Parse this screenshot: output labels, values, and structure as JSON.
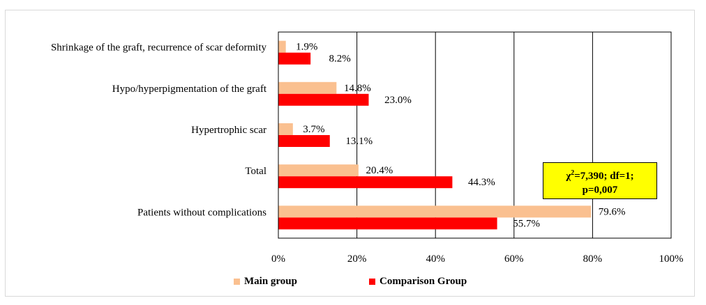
{
  "chart_data": {
    "type": "bar",
    "orientation": "horizontal",
    "categories": [
      "Shrinkage of the graft, recurrence of scar deformity",
      "Hypo/hyperpigmentation of the graft",
      "Hypertrophic scar",
      "Total",
      "Patients without complications"
    ],
    "series": [
      {
        "name": "Main group",
        "color": "#fac090",
        "values": [
          1.9,
          14.8,
          3.7,
          20.4,
          79.6
        ],
        "labels": [
          "1.9%",
          "14.8%",
          "3.7%",
          "20.4%",
          "79.6%"
        ]
      },
      {
        "name": "Comparison Group",
        "color": "#ff0000",
        "values": [
          8.2,
          23.0,
          13.1,
          44.3,
          55.7
        ],
        "labels": [
          "8.2%",
          "23.0%",
          "13.1%",
          "44.3%",
          "55.7%"
        ]
      }
    ],
    "xlim": [
      0,
      100
    ],
    "xticks": [
      "0%",
      "20%",
      "40%",
      "60%",
      "80%",
      "100%"
    ],
    "grid": true,
    "legend_position": "bottom"
  },
  "annotation": {
    "chi_symbol": "χ",
    "chi_sup": "2",
    "line1_rest": "=7,390; df=1;",
    "line2": "p=0,007"
  }
}
